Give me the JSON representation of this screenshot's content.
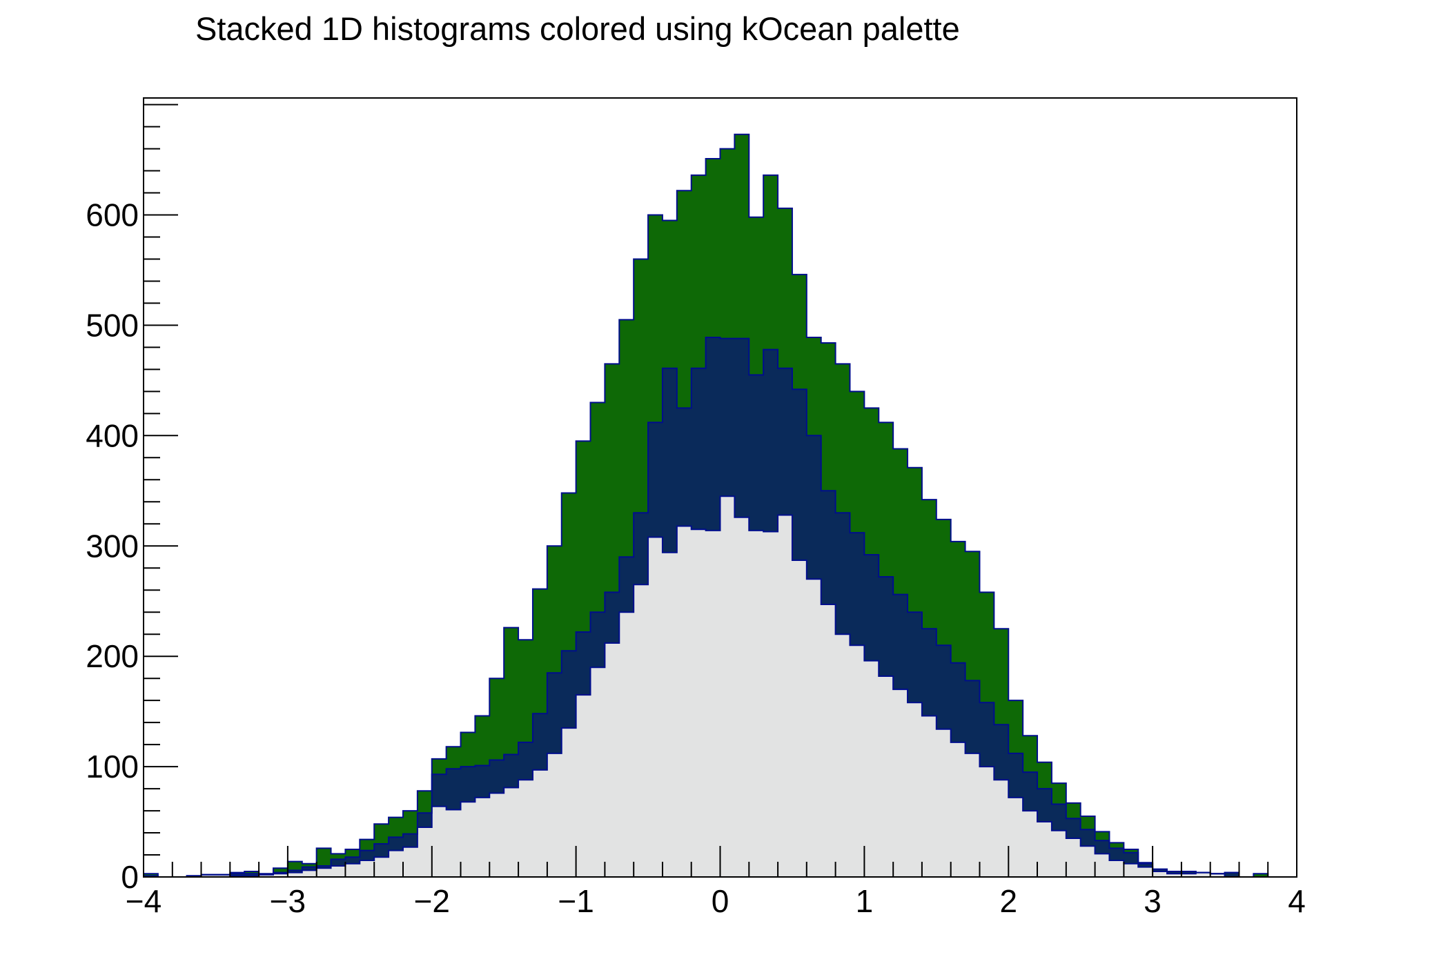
{
  "page": {
    "background": "#ffffff"
  },
  "chart_data": {
    "type": "bar",
    "stacked": true,
    "title": "Stacked 1D histograms colored using kOcean palette",
    "grid": false,
    "legend": "none",
    "x": {
      "min": -4,
      "max": 4,
      "bins": 80,
      "major_tick_step": 1,
      "minor_ticks_per_major": 5,
      "tick_labels": [
        "−4",
        "−3",
        "−2",
        "−1",
        "0",
        "1",
        "2",
        "3",
        "4"
      ]
    },
    "y": {
      "min": 0,
      "max": 706,
      "major_tick_step": 100,
      "minor_tick_step": 20,
      "tick_labels": [
        "0",
        "100",
        "200",
        "300",
        "400",
        "500",
        "600"
      ]
    },
    "colors": {
      "outline": "#000e8c",
      "frame": "#000000",
      "text": "#000000"
    },
    "series": [
      {
        "name": "gray",
        "fill": "#e2e3e3",
        "values": [
          0,
          0,
          0,
          1,
          2,
          2,
          1,
          1,
          2,
          3,
          4,
          6,
          8,
          10,
          12,
          15,
          18,
          24,
          27,
          45,
          64,
          61,
          68,
          72,
          76,
          81,
          88,
          97,
          112,
          135,
          165,
          190,
          212,
          240,
          265,
          308,
          294,
          318,
          315,
          314,
          345,
          326,
          314,
          313,
          328,
          287,
          270,
          247,
          220,
          210,
          196,
          182,
          170,
          158,
          146,
          134,
          122,
          112,
          100,
          88,
          72,
          60,
          50,
          42,
          35,
          28,
          21,
          15,
          12,
          9,
          5,
          3,
          3,
          4,
          3,
          0,
          0,
          0,
          0,
          0
        ]
      },
      {
        "name": "navy",
        "fill": "#0a2a5a",
        "values": [
          1,
          0,
          0,
          0,
          0,
          0,
          2,
          2,
          0,
          1,
          2,
          3,
          2,
          6,
          6,
          9,
          12,
          12,
          12,
          13,
          29,
          37,
          32,
          29,
          30,
          30,
          34,
          51,
          73,
          70,
          57,
          50,
          46,
          50,
          65,
          104,
          167,
          107,
          146,
          175,
          143,
          162,
          141,
          165,
          133,
          155,
          130,
          103,
          110,
          102,
          96,
          90,
          86,
          82,
          79,
          76,
          72,
          66,
          58,
          50,
          40,
          35,
          30,
          24,
          18,
          15,
          12,
          11,
          10,
          3,
          2,
          2,
          2,
          0,
          0,
          4,
          0,
          0,
          0,
          0
        ]
      },
      {
        "name": "green",
        "fill": "#0e6906",
        "values": [
          2,
          0,
          0,
          0,
          0,
          0,
          1,
          2,
          1,
          4,
          8,
          3,
          16,
          5,
          7,
          10,
          18,
          18,
          21,
          20,
          14,
          20,
          31,
          45,
          74,
          115,
          93,
          113,
          115,
          143,
          173,
          190,
          207,
          215,
          230,
          188,
          134,
          197,
          175,
          162,
          172,
          185,
          143,
          158,
          145,
          104,
          89,
          134,
          135,
          128,
          133,
          140,
          132,
          131,
          117,
          114,
          110,
          117,
          100,
          87,
          48,
          33,
          24,
          19,
          14,
          12,
          8,
          5,
          3,
          1,
          0,
          0,
          0,
          0,
          0,
          0,
          0,
          3,
          0,
          0
        ]
      }
    ]
  }
}
